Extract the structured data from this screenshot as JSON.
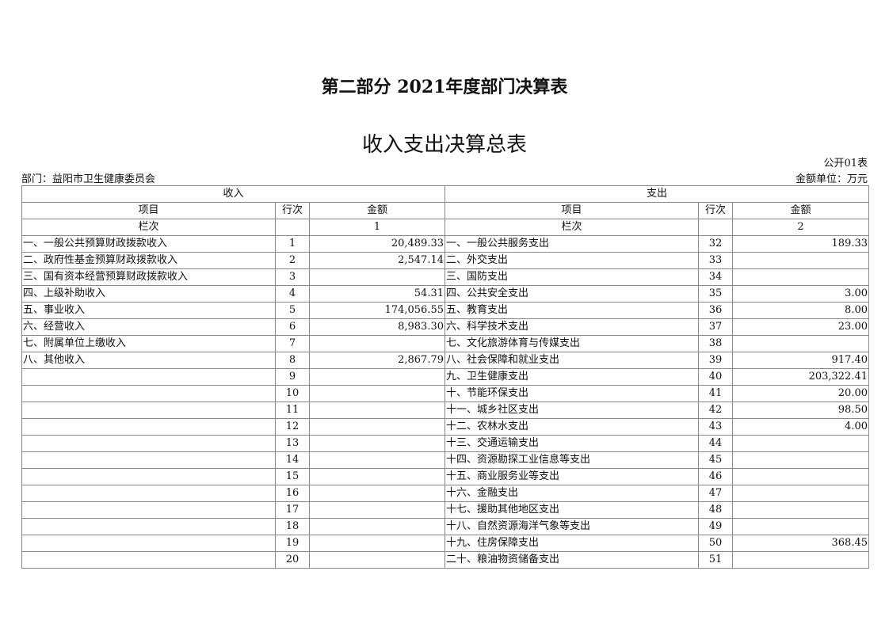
{
  "title": "第二部分 2021年度部门决算表",
  "subtitle": "收入支出决算总表",
  "form_no": "公开01表",
  "department": "部门：益阳市卫生健康委员会",
  "unit": "金额单位：万元",
  "income_header": "收入",
  "expense_header": "支出",
  "col_item": "项目",
  "col_row": "行次",
  "col_amount": "金额",
  "col_index_label": "栏次",
  "income_col_index": "1",
  "expense_col_index": "2",
  "rows": [
    {
      "in_item": "一、一般公共预算财政拨款收入",
      "in_no": "1",
      "in_amt": "20,489.33",
      "ex_item": "一、一般公共服务支出",
      "ex_no": "32",
      "ex_amt": "189.33"
    },
    {
      "in_item": "二、政府性基金预算财政拨款收入",
      "in_no": "2",
      "in_amt": "2,547.14",
      "ex_item": "二、外交支出",
      "ex_no": "33",
      "ex_amt": ""
    },
    {
      "in_item": "三、国有资本经营预算财政拨款收入",
      "in_no": "3",
      "in_amt": "",
      "ex_item": "三、国防支出",
      "ex_no": "34",
      "ex_amt": ""
    },
    {
      "in_item": "四、上级补助收入",
      "in_no": "4",
      "in_amt": "54.31",
      "ex_item": "四、公共安全支出",
      "ex_no": "35",
      "ex_amt": "3.00"
    },
    {
      "in_item": "五、事业收入",
      "in_no": "5",
      "in_amt": "174,056.55",
      "ex_item": "五、教育支出",
      "ex_no": "36",
      "ex_amt": "8.00"
    },
    {
      "in_item": "六、经营收入",
      "in_no": "6",
      "in_amt": "8,983.30",
      "ex_item": "六、科学技术支出",
      "ex_no": "37",
      "ex_amt": "23.00"
    },
    {
      "in_item": "七、附属单位上缴收入",
      "in_no": "7",
      "in_amt": "",
      "ex_item": "七、文化旅游体育与传媒支出",
      "ex_no": "38",
      "ex_amt": ""
    },
    {
      "in_item": "八、其他收入",
      "in_no": "8",
      "in_amt": "2,867.79",
      "ex_item": "八、社会保障和就业支出",
      "ex_no": "39",
      "ex_amt": "917.40"
    },
    {
      "in_item": "",
      "in_no": "9",
      "in_amt": "",
      "ex_item": "九、卫生健康支出",
      "ex_no": "40",
      "ex_amt": "203,322.41"
    },
    {
      "in_item": "",
      "in_no": "10",
      "in_amt": "",
      "ex_item": "十、节能环保支出",
      "ex_no": "41",
      "ex_amt": "20.00"
    },
    {
      "in_item": "",
      "in_no": "11",
      "in_amt": "",
      "ex_item": "十一、城乡社区支出",
      "ex_no": "42",
      "ex_amt": "98.50"
    },
    {
      "in_item": "",
      "in_no": "12",
      "in_amt": "",
      "ex_item": "十二、农林水支出",
      "ex_no": "43",
      "ex_amt": "4.00"
    },
    {
      "in_item": "",
      "in_no": "13",
      "in_amt": "",
      "ex_item": "十三、交通运输支出",
      "ex_no": "44",
      "ex_amt": ""
    },
    {
      "in_item": "",
      "in_no": "14",
      "in_amt": "",
      "ex_item": "十四、资源勘探工业信息等支出",
      "ex_no": "45",
      "ex_amt": ""
    },
    {
      "in_item": "",
      "in_no": "15",
      "in_amt": "",
      "ex_item": "十五、商业服务业等支出",
      "ex_no": "46",
      "ex_amt": ""
    },
    {
      "in_item": "",
      "in_no": "16",
      "in_amt": "",
      "ex_item": "十六、金融支出",
      "ex_no": "47",
      "ex_amt": ""
    },
    {
      "in_item": "",
      "in_no": "17",
      "in_amt": "",
      "ex_item": "十七、援助其他地区支出",
      "ex_no": "48",
      "ex_amt": ""
    },
    {
      "in_item": "",
      "in_no": "18",
      "in_amt": "",
      "ex_item": "十八、自然资源海洋气象等支出",
      "ex_no": "49",
      "ex_amt": ""
    },
    {
      "in_item": "",
      "in_no": "19",
      "in_amt": "",
      "ex_item": "十九、住房保障支出",
      "ex_no": "50",
      "ex_amt": "368.45"
    },
    {
      "in_item": "",
      "in_no": "20",
      "in_amt": "",
      "ex_item": "二十、粮油物资储备支出",
      "ex_no": "51",
      "ex_amt": ""
    }
  ]
}
